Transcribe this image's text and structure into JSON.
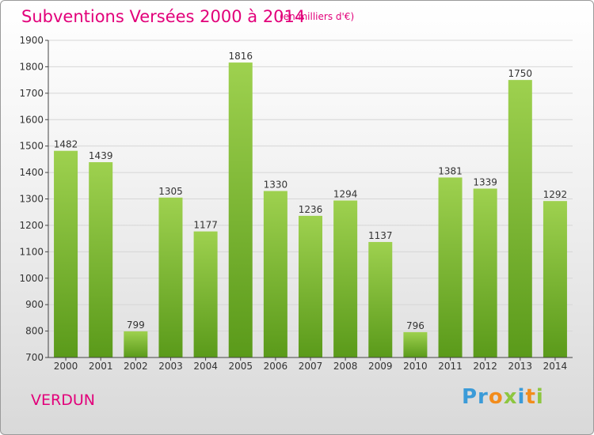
{
  "header": {
    "title": "Subventions Versées 2000 à 2014",
    "subtitle": "(en milliers d'€)"
  },
  "footer": {
    "city": "VERDUN",
    "logo": "Proxiti"
  },
  "colors": {
    "accent": "#e2007a",
    "bar_top": "#9ed14f",
    "bar_bottom": "#5a9a1a"
  },
  "chart_data": {
    "type": "bar",
    "title": "Subventions Versées 2000 à 2014",
    "subtitle": "(en milliers d'€)",
    "categories": [
      "2000",
      "2001",
      "2002",
      "2003",
      "2004",
      "2005",
      "2006",
      "2007",
      "2008",
      "2009",
      "2010",
      "2011",
      "2012",
      "2013",
      "2014"
    ],
    "values": [
      1482,
      1439,
      799,
      1305,
      1177,
      1816,
      1330,
      1236,
      1294,
      1137,
      796,
      1381,
      1339,
      1750,
      1292
    ],
    "ylim": [
      700,
      1900
    ],
    "yticks": [
      700,
      800,
      900,
      1000,
      1100,
      1200,
      1300,
      1400,
      1500,
      1600,
      1700,
      1800,
      1900
    ],
    "grid": true,
    "legend": "none"
  }
}
